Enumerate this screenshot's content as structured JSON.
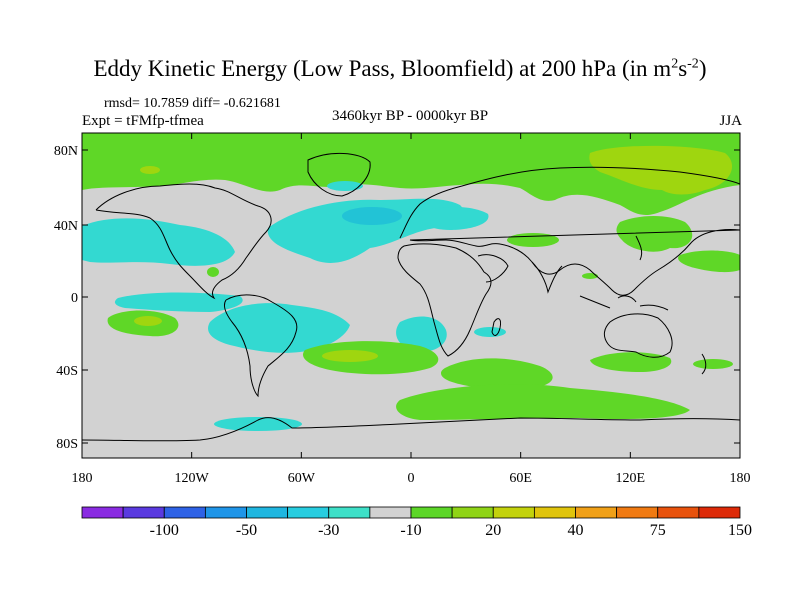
{
  "header": {
    "title_main": "Eddy Kinetic Energy (Low Pass, Bloomfield) at 200 hPa (in m",
    "title_exp1": "2",
    "title_mid": "s",
    "title_exp2": "-2",
    "title_end": ")",
    "stats": "rmsd= 10.7859 diff= -0.621681",
    "experiment": "Expt = tFMfp-tfmea",
    "period": "3460kyr BP - 0000kyr BP",
    "season": "JJA"
  },
  "map": {
    "lon_labels": [
      "180",
      "120W",
      "60W",
      "0",
      "60E",
      "120E",
      "180"
    ],
    "lat_labels": [
      "80N",
      "40N",
      "0",
      "40S",
      "80S"
    ],
    "colors": {
      "background": "#d2d2d2",
      "green": "#5fd727",
      "lime": "#9fd60f",
      "cyan": "#33d9d1",
      "teal": "#22c3d6"
    }
  },
  "colorbar": {
    "colors": [
      "#8a2be2",
      "#5a3ae0",
      "#2e62e6",
      "#1f95e8",
      "#1fb6e0",
      "#27cde0",
      "#3ee0c8",
      "#d2d2d2",
      "#5cd627",
      "#8fd416",
      "#c3d20c",
      "#e0c40c",
      "#f0a018",
      "#f07a12",
      "#e8520c",
      "#dd2a08"
    ],
    "labels": [
      "-100",
      "-50",
      "-30",
      "-10",
      "20",
      "40",
      "75",
      "150"
    ]
  }
}
